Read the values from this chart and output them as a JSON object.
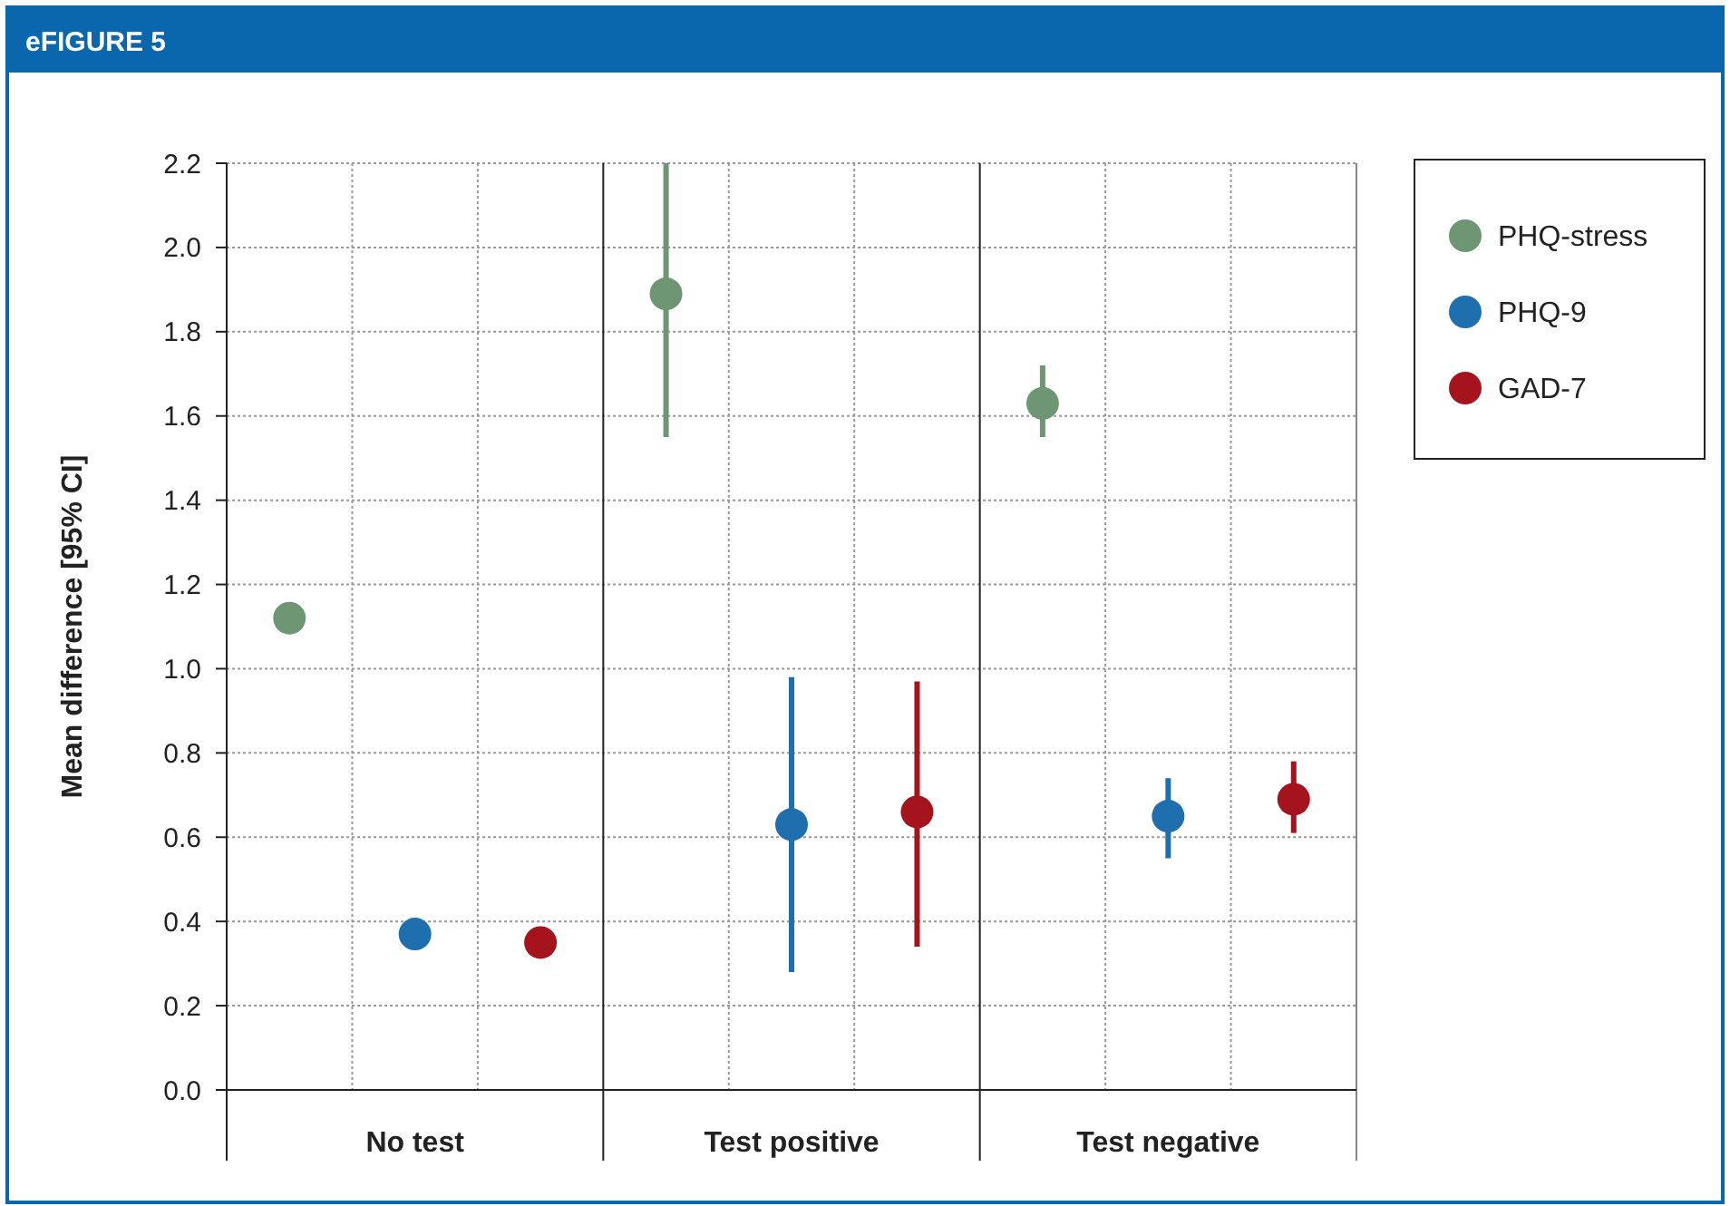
{
  "chart_data": {
    "type": "scatter",
    "title": "eFIGURE 5",
    "ylabel": "Mean difference [95% CI]",
    "categories": [
      "No test",
      "Test positive",
      "Test negative"
    ],
    "ylim": [
      0,
      2.2
    ],
    "yticks": [
      {
        "value": 0,
        "label": "0.0"
      },
      {
        "value": 0.2,
        "label": "0.2"
      },
      {
        "value": 0.4,
        "label": "0.4"
      },
      {
        "value": 0.6,
        "label": "0.6"
      },
      {
        "value": 0.8,
        "label": "0.8"
      },
      {
        "value": 1,
        "label": "1.0"
      },
      {
        "value": 1.2,
        "label": "1.2"
      },
      {
        "value": 1.4,
        "label": "1.4"
      },
      {
        "value": 1.6,
        "label": "1.6"
      },
      {
        "value": 1.8,
        "label": "1.8"
      },
      {
        "value": 2,
        "label": "2.0"
      },
      {
        "value": 2.2,
        "label": "2.2"
      }
    ],
    "grid": true,
    "legend": "top right",
    "marker": "circle",
    "series": [
      {
        "name": "PHQ-stress",
        "color": "#6e9672",
        "values": [
          1.12,
          1.89,
          1.63
        ],
        "errors": [
          null,
          [
            1.55,
            2.2
          ],
          [
            1.55,
            1.72
          ]
        ]
      },
      {
        "name": "PHQ-9",
        "color": "#1f6fae",
        "values": [
          0.37,
          0.63,
          0.65
        ],
        "errors": [
          null,
          [
            0.28,
            0.98
          ],
          [
            0.55,
            0.74
          ]
        ]
      },
      {
        "name": "GAD-7",
        "color": "#a5141c",
        "values": [
          0.35,
          0.66,
          0.69
        ],
        "errors": [
          null,
          [
            0.34,
            0.97
          ],
          [
            0.61,
            0.78
          ]
        ]
      }
    ]
  }
}
